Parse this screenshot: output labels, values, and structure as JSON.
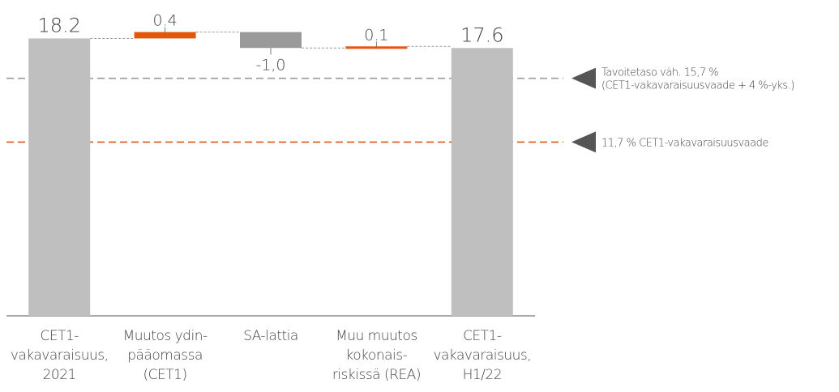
{
  "chart_data": {
    "type": "waterfall",
    "categories": [
      [
        "CET1-",
        "vakavaraisuus,",
        "2021"
      ],
      [
        "Muutos ydin-",
        "pääomassa",
        "(CET1)"
      ],
      [
        "SA-lattia"
      ],
      [
        "Muu muutos",
        "kokonais-",
        "riskissä (REA)"
      ],
      [
        "CET1-",
        "vakavaraisuus,",
        "H1/22"
      ]
    ],
    "values": [
      18.2,
      0.4,
      -1.0,
      0.1,
      17.6
    ],
    "value_labels": [
      "18.2",
      "0.4",
      "-1,0",
      "0.1",
      "17.6"
    ],
    "measures": [
      "total",
      "relative",
      "relative",
      "relative",
      "total"
    ],
    "colors": {
      "total": "#bfbfbf",
      "increase": "#e5550e",
      "decrease": "#9a9a9a"
    },
    "ylim": [
      0.8,
      20
    ],
    "reference_lines": [
      {
        "value": 15.7,
        "color": "#999999",
        "label": [
          "Tavoitetaso väh. 15,7 %",
          "(CET1-vakavaraisuusvaade + 4 %-yks.)"
        ]
      },
      {
        "value": 11.7,
        "color": "#e5550e",
        "label": [
          "11,7 % CET1-vakavaraisuusvaade"
        ]
      }
    ]
  }
}
